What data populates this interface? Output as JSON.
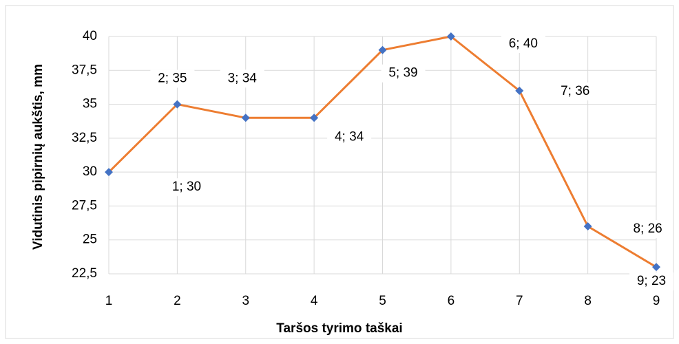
{
  "chart_data": {
    "type": "line",
    "xlabel": "Taršos tyrimo taškai",
    "ylabel": "Vidutinis pipirnių aukštis, mm",
    "x": [
      1,
      2,
      3,
      4,
      5,
      6,
      7,
      8,
      9
    ],
    "series": [
      {
        "line_color": "#ED7D31",
        "marker_color": "#4472C4",
        "values": [
          30,
          35,
          34,
          34,
          39,
          40,
          36,
          26,
          23
        ],
        "value_labels": [
          "1; 30",
          "2; 35",
          "3; 34",
          "4; 34",
          "5; 39",
          "6; 40",
          "7; 36",
          "8; 26",
          "9; 23"
        ]
      }
    ],
    "xlim": [
      1,
      9
    ],
    "xticks": [
      1,
      2,
      3,
      4,
      5,
      6,
      7,
      8,
      9
    ],
    "ylim": [
      22.5,
      40
    ],
    "yticks": [
      {
        "value": 22.5,
        "label": "22,5"
      },
      25,
      {
        "value": 27.5,
        "label": "27,5"
      },
      30,
      {
        "value": 32.5,
        "label": "32,5"
      },
      35,
      {
        "value": 37.5,
        "label": "37,5"
      },
      40
    ],
    "grid": true
  }
}
